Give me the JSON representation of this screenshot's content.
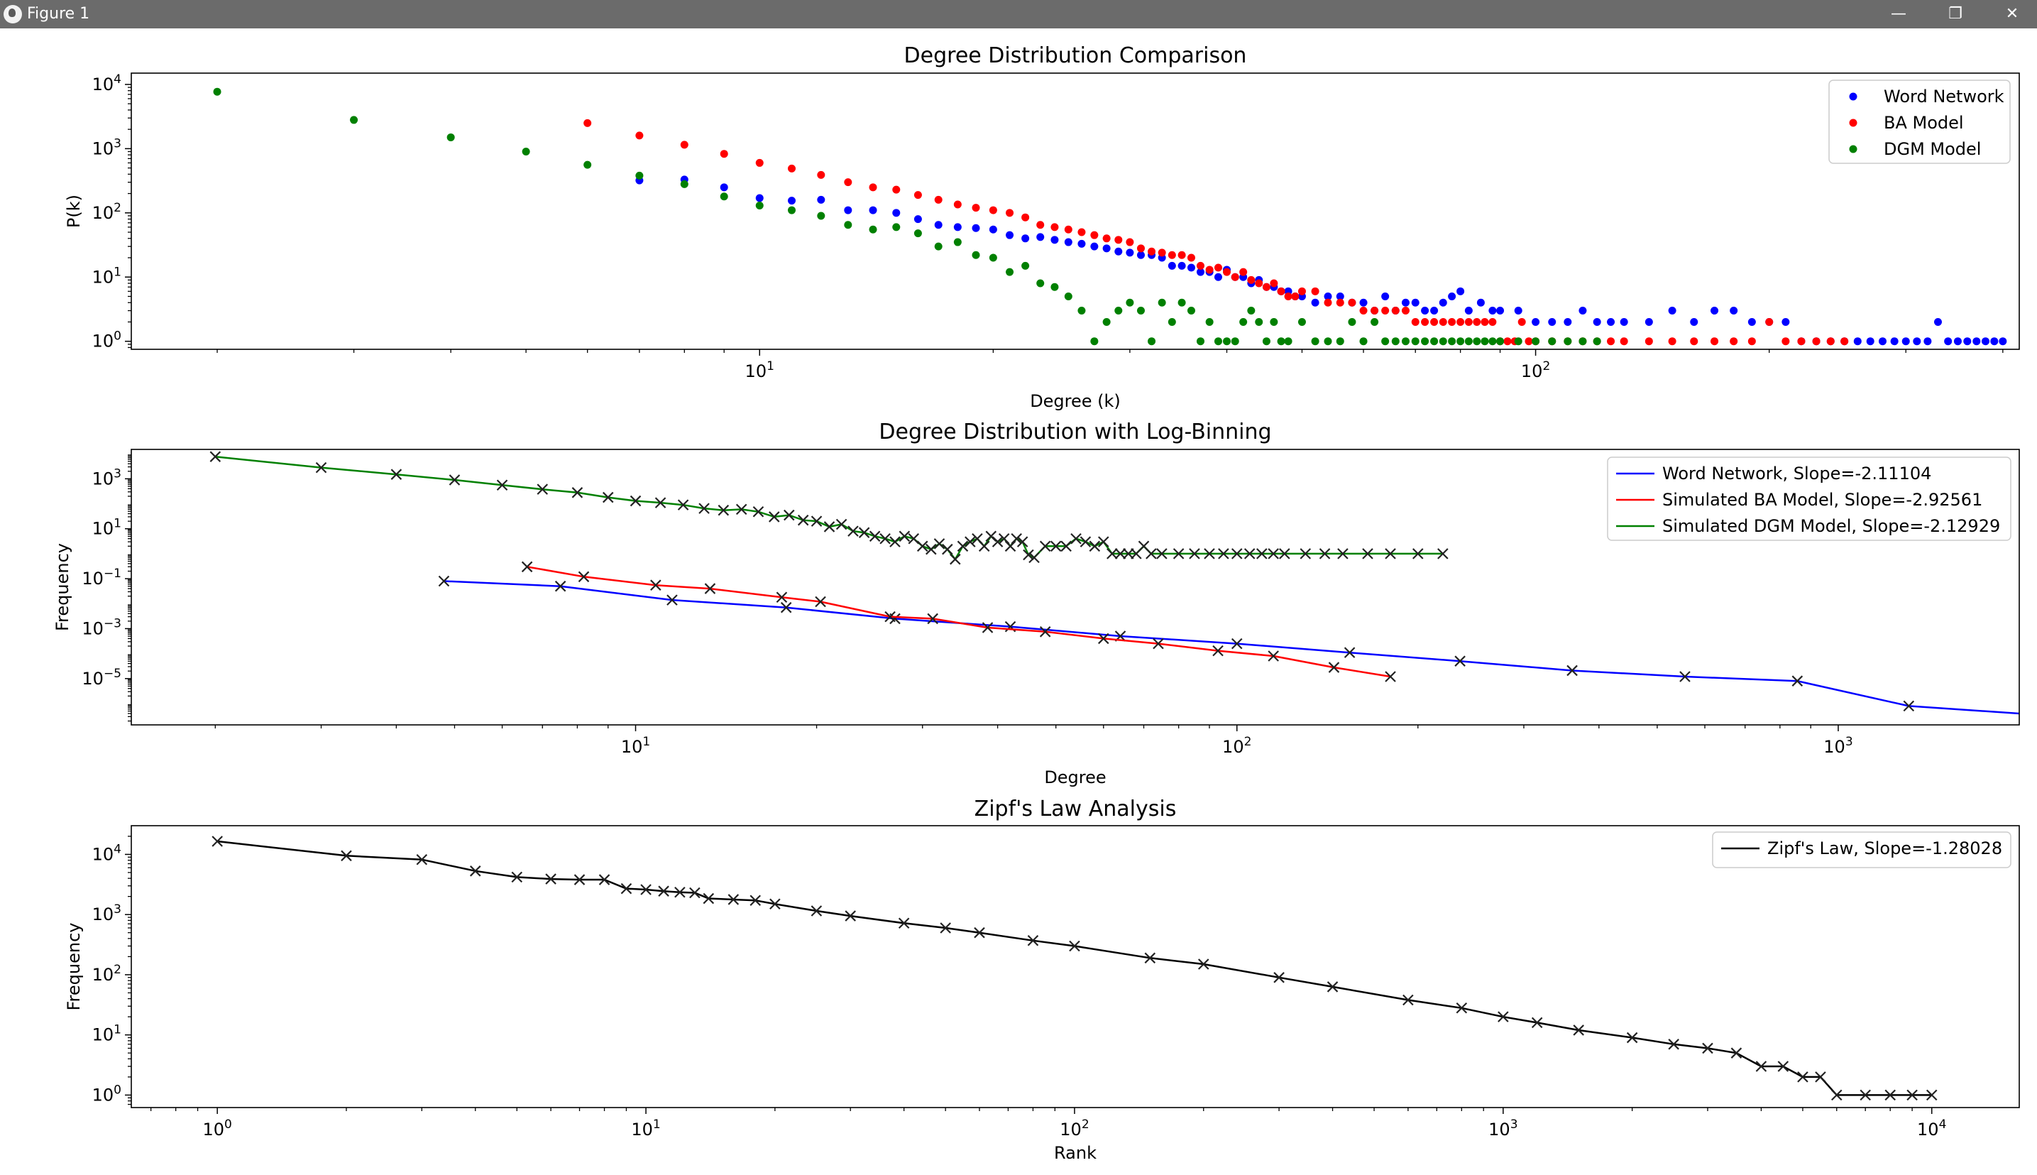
{
  "window": {
    "title": "Figure 1",
    "minimize_glyph": "—",
    "restore_glyph": "❐",
    "close_glyph": "✕"
  },
  "colors": {
    "titlebar": "#6b6b6b",
    "word": "#0000ff",
    "ba": "#ff0000",
    "dgm": "#008000",
    "zipf": "#000000"
  },
  "chart_data": [
    {
      "type": "scatter",
      "title": "Degree Distribution Comparison",
      "xlabel": "Degree (k)",
      "ylabel": "P(k)",
      "xscale": "log",
      "yscale": "log",
      "xlim": [
        1.55,
        420
      ],
      "ylim": [
        0.75,
        15000
      ],
      "xticks": [
        {
          "v": 10,
          "e": "1"
        },
        {
          "v": 100,
          "e": "2"
        }
      ],
      "yticks": [
        {
          "v": 1,
          "e": "0"
        },
        {
          "v": 10,
          "e": "1"
        },
        {
          "v": 100,
          "e": "2"
        },
        {
          "v": 1000,
          "e": "3"
        },
        {
          "v": 10000,
          "e": "4"
        }
      ],
      "legend": "top-right",
      "series": [
        {
          "name": "Word Network",
          "color": "#0000ff",
          "x": [
            7,
            8,
            9,
            10,
            11,
            12,
            13,
            14,
            15,
            16,
            17,
            18,
            19,
            20,
            21,
            22,
            23,
            24,
            25,
            26,
            27,
            28,
            29,
            30,
            31,
            32,
            33,
            34,
            35,
            36,
            37,
            38,
            39,
            40,
            41,
            42,
            43,
            44,
            45,
            46,
            47,
            48,
            49,
            50,
            52,
            54,
            56,
            58,
            60,
            62,
            64,
            66,
            68,
            70,
            72,
            74,
            76,
            78,
            80,
            82,
            85,
            88,
            90,
            95,
            100,
            105,
            110,
            115,
            120,
            125,
            130,
            140,
            150,
            160,
            170,
            180,
            190,
            200,
            210,
            220,
            230,
            240,
            250,
            260,
            270,
            280,
            290,
            300,
            310,
            320,
            330,
            340,
            350,
            360,
            370,
            380,
            390,
            400
          ],
          "y": [
            320,
            330,
            250,
            170,
            155,
            160,
            110,
            110,
            100,
            80,
            65,
            60,
            58,
            55,
            45,
            40,
            42,
            38,
            35,
            33,
            30,
            28,
            25,
            24,
            22,
            22,
            20,
            15,
            15,
            14,
            12,
            12,
            10,
            13,
            10,
            10,
            8,
            9,
            7,
            7,
            6,
            6,
            5,
            5,
            4,
            5,
            5,
            4,
            4,
            3,
            5,
            3,
            4,
            4,
            3,
            3,
            4,
            5,
            6,
            3,
            4,
            3,
            3,
            3,
            2,
            2,
            2,
            3,
            2,
            2,
            2,
            2,
            3,
            2,
            3,
            3,
            2,
            2,
            2,
            1,
            1,
            1,
            1,
            1,
            1,
            1,
            1,
            1,
            1,
            1,
            2,
            1,
            1,
            1,
            1,
            1,
            1,
            1
          ]
        },
        {
          "name": "BA Model",
          "color": "#ff0000",
          "x": [
            6,
            7,
            8,
            9,
            10,
            11,
            12,
            13,
            14,
            15,
            16,
            17,
            18,
            19,
            20,
            21,
            22,
            23,
            24,
            25,
            26,
            27,
            28,
            29,
            30,
            31,
            32,
            33,
            34,
            35,
            36,
            37,
            38,
            39,
            40,
            41,
            42,
            43,
            44,
            45,
            46,
            47,
            48,
            49,
            50,
            52,
            54,
            56,
            58,
            60,
            62,
            64,
            66,
            68,
            70,
            72,
            74,
            76,
            78,
            80,
            82,
            84,
            86,
            88,
            90,
            92,
            94,
            96,
            98,
            100,
            105,
            110,
            115,
            120,
            125,
            130,
            140,
            150,
            160,
            170,
            180,
            190,
            200,
            210,
            220,
            230,
            240,
            250
          ],
          "y": [
            2500,
            1600,
            1150,
            830,
            600,
            490,
            390,
            300,
            250,
            230,
            190,
            160,
            135,
            120,
            110,
            100,
            85,
            65,
            60,
            55,
            50,
            45,
            40,
            38,
            35,
            28,
            25,
            24,
            22,
            22,
            20,
            15,
            13,
            14,
            12,
            10,
            12,
            9,
            8,
            7,
            8,
            6,
            5,
            5,
            6,
            6,
            4,
            4,
            4,
            3,
            3,
            3,
            3,
            3,
            2,
            2,
            2,
            2,
            2,
            2,
            2,
            2,
            2,
            2,
            1,
            1,
            1,
            2,
            1,
            1,
            1,
            1,
            1,
            1,
            1,
            1,
            1,
            1,
            1,
            1,
            1,
            1,
            2,
            1,
            1,
            1,
            1,
            1
          ]
        },
        {
          "name": "DGM Model",
          "color": "#008000",
          "x": [
            2,
            3,
            4,
            5,
            6,
            7,
            8,
            9,
            10,
            11,
            12,
            13,
            14,
            15,
            16,
            17,
            18,
            19,
            20,
            21,
            22,
            23,
            24,
            25,
            26,
            27,
            28,
            29,
            30,
            31,
            32,
            33,
            34,
            35,
            36,
            37,
            38,
            39,
            40,
            41,
            42,
            43,
            44,
            45,
            46,
            47,
            48,
            50,
            52,
            54,
            56,
            58,
            60,
            62,
            64,
            66,
            68,
            70,
            72,
            74,
            76,
            78,
            80,
            82,
            84,
            86,
            88,
            90,
            95,
            100,
            105,
            110,
            115,
            120
          ],
          "y": [
            7700,
            2800,
            1500,
            900,
            560,
            380,
            280,
            180,
            130,
            110,
            90,
            65,
            55,
            60,
            48,
            30,
            35,
            22,
            20,
            12,
            15,
            8,
            7,
            5,
            3,
            1,
            2,
            3,
            4,
            3,
            1,
            4,
            2,
            4,
            3,
            1,
            2,
            1,
            1,
            1,
            2,
            3,
            2,
            1,
            2,
            1,
            1,
            2,
            1,
            1,
            1,
            2,
            1,
            2,
            1,
            1,
            1,
            1,
            1,
            1,
            1,
            1,
            1,
            1,
            1,
            1,
            1,
            1,
            1,
            1,
            1,
            1,
            1,
            1
          ]
        }
      ]
    },
    {
      "type": "line",
      "title": "Degree Distribution with Log-Binning",
      "xlabel": "Degree",
      "ylabel": "Frequency",
      "xscale": "log",
      "yscale": "log",
      "xlim": [
        1.45,
        2000
      ],
      "ylim": [
        1.4e-07,
        15000
      ],
      "xticks": [
        {
          "v": 10,
          "e": "1"
        },
        {
          "v": 100,
          "e": "2"
        },
        {
          "v": 1000,
          "e": "3"
        }
      ],
      "yticks": [
        {
          "v": 1e-05,
          "e": "−5"
        },
        {
          "v": 0.001,
          "e": "−3"
        },
        {
          "v": 0.1,
          "e": "−1"
        },
        {
          "v": 10,
          "e": "1"
        },
        {
          "v": 1000,
          "e": "3"
        }
      ],
      "legend": "top-right",
      "series": [
        {
          "name": "Word Network, Slope=-2.11104",
          "color": "#0000ff",
          "x": [
            4.8,
            7.5,
            11.5,
            17.8,
            27,
            42,
            64,
            100,
            154,
            235,
            361,
            556,
            855,
            1310
          ],
          "y": [
            0.08,
            0.05,
            0.014,
            0.007,
            0.0025,
            0.0012,
            0.0005,
            0.00025,
            0.00011,
            5e-05,
            2.1e-05,
            1.2e-05,
            8e-06,
            8e-07
          ],
          "more_x": [
            2000
          ],
          "more_y": [
            4e-07
          ]
        },
        {
          "name": "Simulated BA Model, Slope=-2.92561",
          "color": "#ff0000",
          "x": [
            6.6,
            8.2,
            10.8,
            13.3,
            17.5,
            20.3,
            26.5,
            31.2,
            38.5,
            48,
            60,
            74,
            93,
            115,
            145,
            180
          ],
          "y": [
            0.3,
            0.12,
            0.055,
            0.04,
            0.018,
            0.012,
            0.003,
            0.0025,
            0.0011,
            0.00075,
            0.0004,
            0.00025,
            0.00013,
            8e-05,
            2.8e-05,
            1.2e-05
          ]
        },
        {
          "name": "Simulated DGM Model, Slope=-2.12929",
          "color": "#008000",
          "x": [
            2,
            3,
            4,
            5,
            6,
            7,
            8,
            9,
            10,
            11,
            12,
            13,
            14,
            15,
            16,
            17,
            18,
            19,
            20,
            21,
            22,
            23,
            24,
            25,
            26,
            27,
            28,
            29,
            30,
            31,
            32,
            33,
            34,
            35,
            36,
            37,
            38,
            39,
            40,
            41,
            42,
            43,
            44,
            45,
            46,
            48,
            50,
            52,
            54,
            56,
            58,
            60,
            62,
            64,
            66,
            68,
            70,
            72,
            75,
            80,
            85,
            90,
            95,
            100,
            105,
            110,
            115,
            120,
            130,
            140,
            150,
            165,
            180,
            200,
            220
          ],
          "y": [
            7700,
            2800,
            1500,
            900,
            560,
            380,
            280,
            180,
            130,
            110,
            90,
            65,
            55,
            60,
            48,
            30,
            35,
            22,
            20,
            12,
            15,
            8,
            7,
            5,
            4,
            3,
            5,
            4,
            2,
            1.5,
            2.5,
            1.5,
            0.6,
            2,
            3,
            4,
            2,
            5,
            3,
            4,
            2,
            4,
            3,
            0.9,
            0.7,
            2,
            2,
            2,
            4,
            3,
            2,
            3,
            1,
            1,
            1,
            1,
            2,
            1,
            1,
            1,
            1,
            1,
            1,
            1,
            1,
            1,
            1,
            1,
            1,
            1,
            1,
            1,
            1,
            1,
            1
          ]
        }
      ]
    },
    {
      "type": "line",
      "title": "Zipf's Law Analysis",
      "xlabel": "Rank",
      "ylabel": "Frequency",
      "xscale": "log",
      "yscale": "log",
      "xlim": [
        0.63,
        16000
      ],
      "ylim": [
        0.62,
        30000
      ],
      "xticks": [
        {
          "v": 1,
          "e": "0"
        },
        {
          "v": 10,
          "e": "1"
        },
        {
          "v": 100,
          "e": "2"
        },
        {
          "v": 1000,
          "e": "3"
        },
        {
          "v": 10000,
          "e": "4"
        }
      ],
      "yticks": [
        {
          "v": 1,
          "e": "0"
        },
        {
          "v": 10,
          "e": "1"
        },
        {
          "v": 100,
          "e": "2"
        },
        {
          "v": 1000,
          "e": "3"
        },
        {
          "v": 10000,
          "e": "4"
        }
      ],
      "legend": "top-right",
      "series": [
        {
          "name": "Zipf's Law, Slope=-1.28028",
          "color": "#000000",
          "x": [
            1,
            2,
            3,
            4,
            5,
            6,
            7,
            8,
            9,
            10,
            11,
            12,
            13,
            14,
            16,
            18,
            20,
            25,
            30,
            40,
            50,
            60,
            80,
            100,
            150,
            200,
            300,
            400,
            600,
            800,
            1000,
            1200,
            1500,
            2000,
            2500,
            3000,
            3500,
            4000,
            4500,
            5000,
            5500,
            6000,
            7000,
            8000,
            9000,
            10000
          ],
          "y": [
            16500,
            9500,
            8200,
            5300,
            4200,
            3900,
            3800,
            3800,
            2700,
            2600,
            2450,
            2350,
            2300,
            1850,
            1780,
            1720,
            1500,
            1150,
            950,
            720,
            600,
            500,
            370,
            300,
            190,
            150,
            90,
            63,
            38,
            28,
            20,
            16,
            12,
            9,
            7,
            6,
            5,
            3,
            3,
            2,
            2,
            1,
            1,
            1,
            1,
            1
          ]
        }
      ]
    }
  ]
}
